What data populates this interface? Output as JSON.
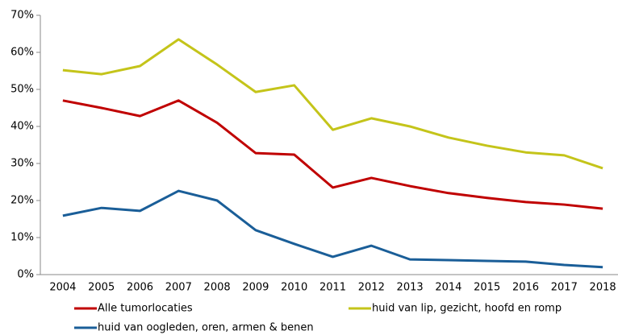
{
  "chart_data": {
    "type": "line",
    "categories": [
      "2004",
      "2005",
      "2006",
      "2007",
      "2008",
      "2009",
      "2010",
      "2011",
      "2012",
      "2013",
      "2014",
      "2015",
      "2016",
      "2017",
      "2018"
    ],
    "series": [
      {
        "name": "Alle tumorlocaties",
        "color": "#c00000",
        "values": [
          47.0,
          45.0,
          42.8,
          47.0,
          41.0,
          32.8,
          32.4,
          23.5,
          26.1,
          23.9,
          22.0,
          20.7,
          19.6,
          18.9,
          17.8
        ]
      },
      {
        "name": "huid van lip, gezicht, hoofd en romp",
        "color": "#c4c41a",
        "values": [
          55.2,
          54.1,
          56.3,
          63.5,
          56.7,
          49.3,
          51.1,
          39.1,
          42.2,
          40.0,
          37.0,
          34.8,
          33.0,
          32.2,
          28.7
        ]
      },
      {
        "name": "huid van oogleden, oren, armen & benen",
        "color": "#1a5e98",
        "values": [
          15.9,
          18.0,
          17.2,
          22.6,
          20.0,
          12.0,
          8.3,
          4.8,
          7.8,
          4.1,
          3.9,
          3.7,
          3.5,
          2.6,
          2.0
        ]
      }
    ],
    "ylim": [
      0,
      70
    ],
    "yticks": [
      {
        "value": 0,
        "label": "0%"
      },
      {
        "value": 10,
        "label": "10%"
      },
      {
        "value": 20,
        "label": "20%"
      },
      {
        "value": 30,
        "label": "30%"
      },
      {
        "value": 40,
        "label": "40%"
      },
      {
        "value": 50,
        "label": "50%"
      },
      {
        "value": 60,
        "label": "60%"
      },
      {
        "value": 70,
        "label": "70%"
      }
    ]
  }
}
